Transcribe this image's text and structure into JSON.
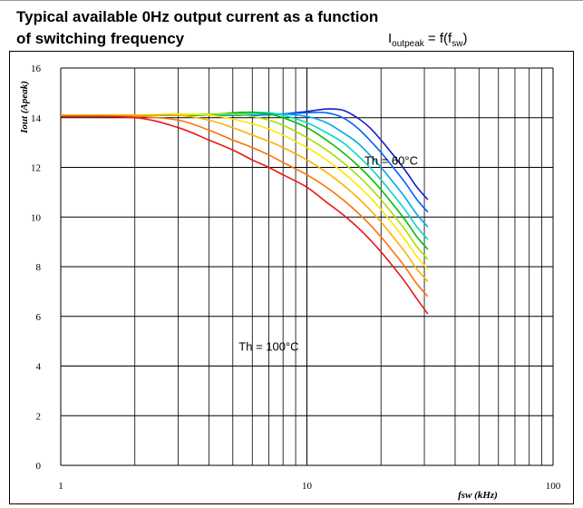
{
  "header": {
    "title_line1": "Typical available 0Hz output current as a function",
    "title_line2": "of switching frequency",
    "formula": {
      "lhs": "I",
      "lhs_sub": "outpeak",
      "eq": " = f(f",
      "arg_sub": "sw",
      "close": ")"
    }
  },
  "chart_data": {
    "type": "line",
    "title": "Typical available 0Hz output current as a function of switching frequency",
    "subtitle": "Ioutpeak = f(fsw)",
    "xlabel": "fsw (kHz)",
    "ylabel": "Iout (Apeak)",
    "xscale": "log",
    "xlim": [
      1,
      100
    ],
    "ylim": [
      0,
      16
    ],
    "x_ticks": [
      1,
      10,
      100
    ],
    "y_ticks": [
      0,
      2,
      4,
      6,
      8,
      10,
      12,
      14,
      16
    ],
    "grid": true,
    "x": [
      1,
      2,
      3,
      4,
      5,
      6,
      7,
      8,
      10,
      12,
      14,
      16,
      18,
      20,
      22,
      25,
      28,
      31
    ],
    "series": [
      {
        "color": "#1020c0",
        "values": [
          14.1,
          14.1,
          14.1,
          14.1,
          14.1,
          14.1,
          14.12,
          14.15,
          14.25,
          14.35,
          14.3,
          14.0,
          13.6,
          13.1,
          12.6,
          11.9,
          11.2,
          10.7
        ]
      },
      {
        "color": "#0060ff",
        "values": [
          14.1,
          14.1,
          14.1,
          14.1,
          14.1,
          14.1,
          14.12,
          14.15,
          14.2,
          14.2,
          14.0,
          13.6,
          13.1,
          12.6,
          12.1,
          11.4,
          10.7,
          10.2
        ]
      },
      {
        "color": "#00a8e8",
        "values": [
          14.1,
          14.1,
          14.1,
          14.1,
          14.1,
          14.12,
          14.15,
          14.15,
          14.05,
          13.8,
          13.4,
          13.0,
          12.5,
          12.0,
          11.5,
          10.8,
          10.1,
          9.6
        ]
      },
      {
        "color": "#00d8c8",
        "values": [
          14.1,
          14.1,
          14.1,
          14.1,
          14.15,
          14.2,
          14.2,
          14.1,
          13.8,
          13.4,
          13.0,
          12.5,
          12.0,
          11.5,
          11.0,
          10.3,
          9.6,
          9.1
        ]
      },
      {
        "color": "#00c000",
        "values": [
          14.1,
          14.1,
          14.1,
          14.12,
          14.2,
          14.22,
          14.15,
          14.0,
          13.6,
          13.1,
          12.6,
          12.1,
          11.6,
          11.1,
          10.6,
          9.9,
          9.2,
          8.7
        ]
      },
      {
        "color": "#a8e000",
        "values": [
          14.1,
          14.1,
          14.12,
          14.15,
          14.15,
          14.05,
          13.9,
          13.7,
          13.2,
          12.7,
          12.2,
          11.7,
          11.2,
          10.7,
          10.2,
          9.5,
          8.8,
          8.3
        ]
      },
      {
        "color": "#ffe800",
        "values": [
          14.1,
          14.1,
          14.15,
          14.1,
          13.95,
          13.75,
          13.55,
          13.3,
          12.8,
          12.3,
          11.8,
          11.3,
          10.8,
          10.3,
          9.8,
          9.1,
          8.4,
          7.9
        ]
      },
      {
        "color": "#ffb000",
        "values": [
          14.1,
          14.1,
          14.1,
          13.9,
          13.6,
          13.3,
          13.05,
          12.8,
          12.3,
          11.8,
          11.3,
          10.8,
          10.3,
          9.8,
          9.3,
          8.6,
          7.9,
          7.4
        ]
      },
      {
        "color": "#ff7000",
        "values": [
          14.05,
          14.05,
          13.9,
          13.5,
          13.1,
          12.8,
          12.5,
          12.2,
          11.7,
          11.2,
          10.7,
          10.2,
          9.7,
          9.2,
          8.7,
          8.0,
          7.3,
          6.8
        ]
      },
      {
        "color": "#e81818",
        "values": [
          14.05,
          14.0,
          13.6,
          13.1,
          12.7,
          12.3,
          12.0,
          11.7,
          11.2,
          10.6,
          10.1,
          9.6,
          9.1,
          8.6,
          8.1,
          7.4,
          6.7,
          6.1
        ]
      }
    ],
    "annotations": [
      {
        "text": "Th = 60°C",
        "x": 22,
        "y": 12.3
      },
      {
        "text": "Th = 100°C",
        "x": 7,
        "y": 4.8
      }
    ]
  }
}
